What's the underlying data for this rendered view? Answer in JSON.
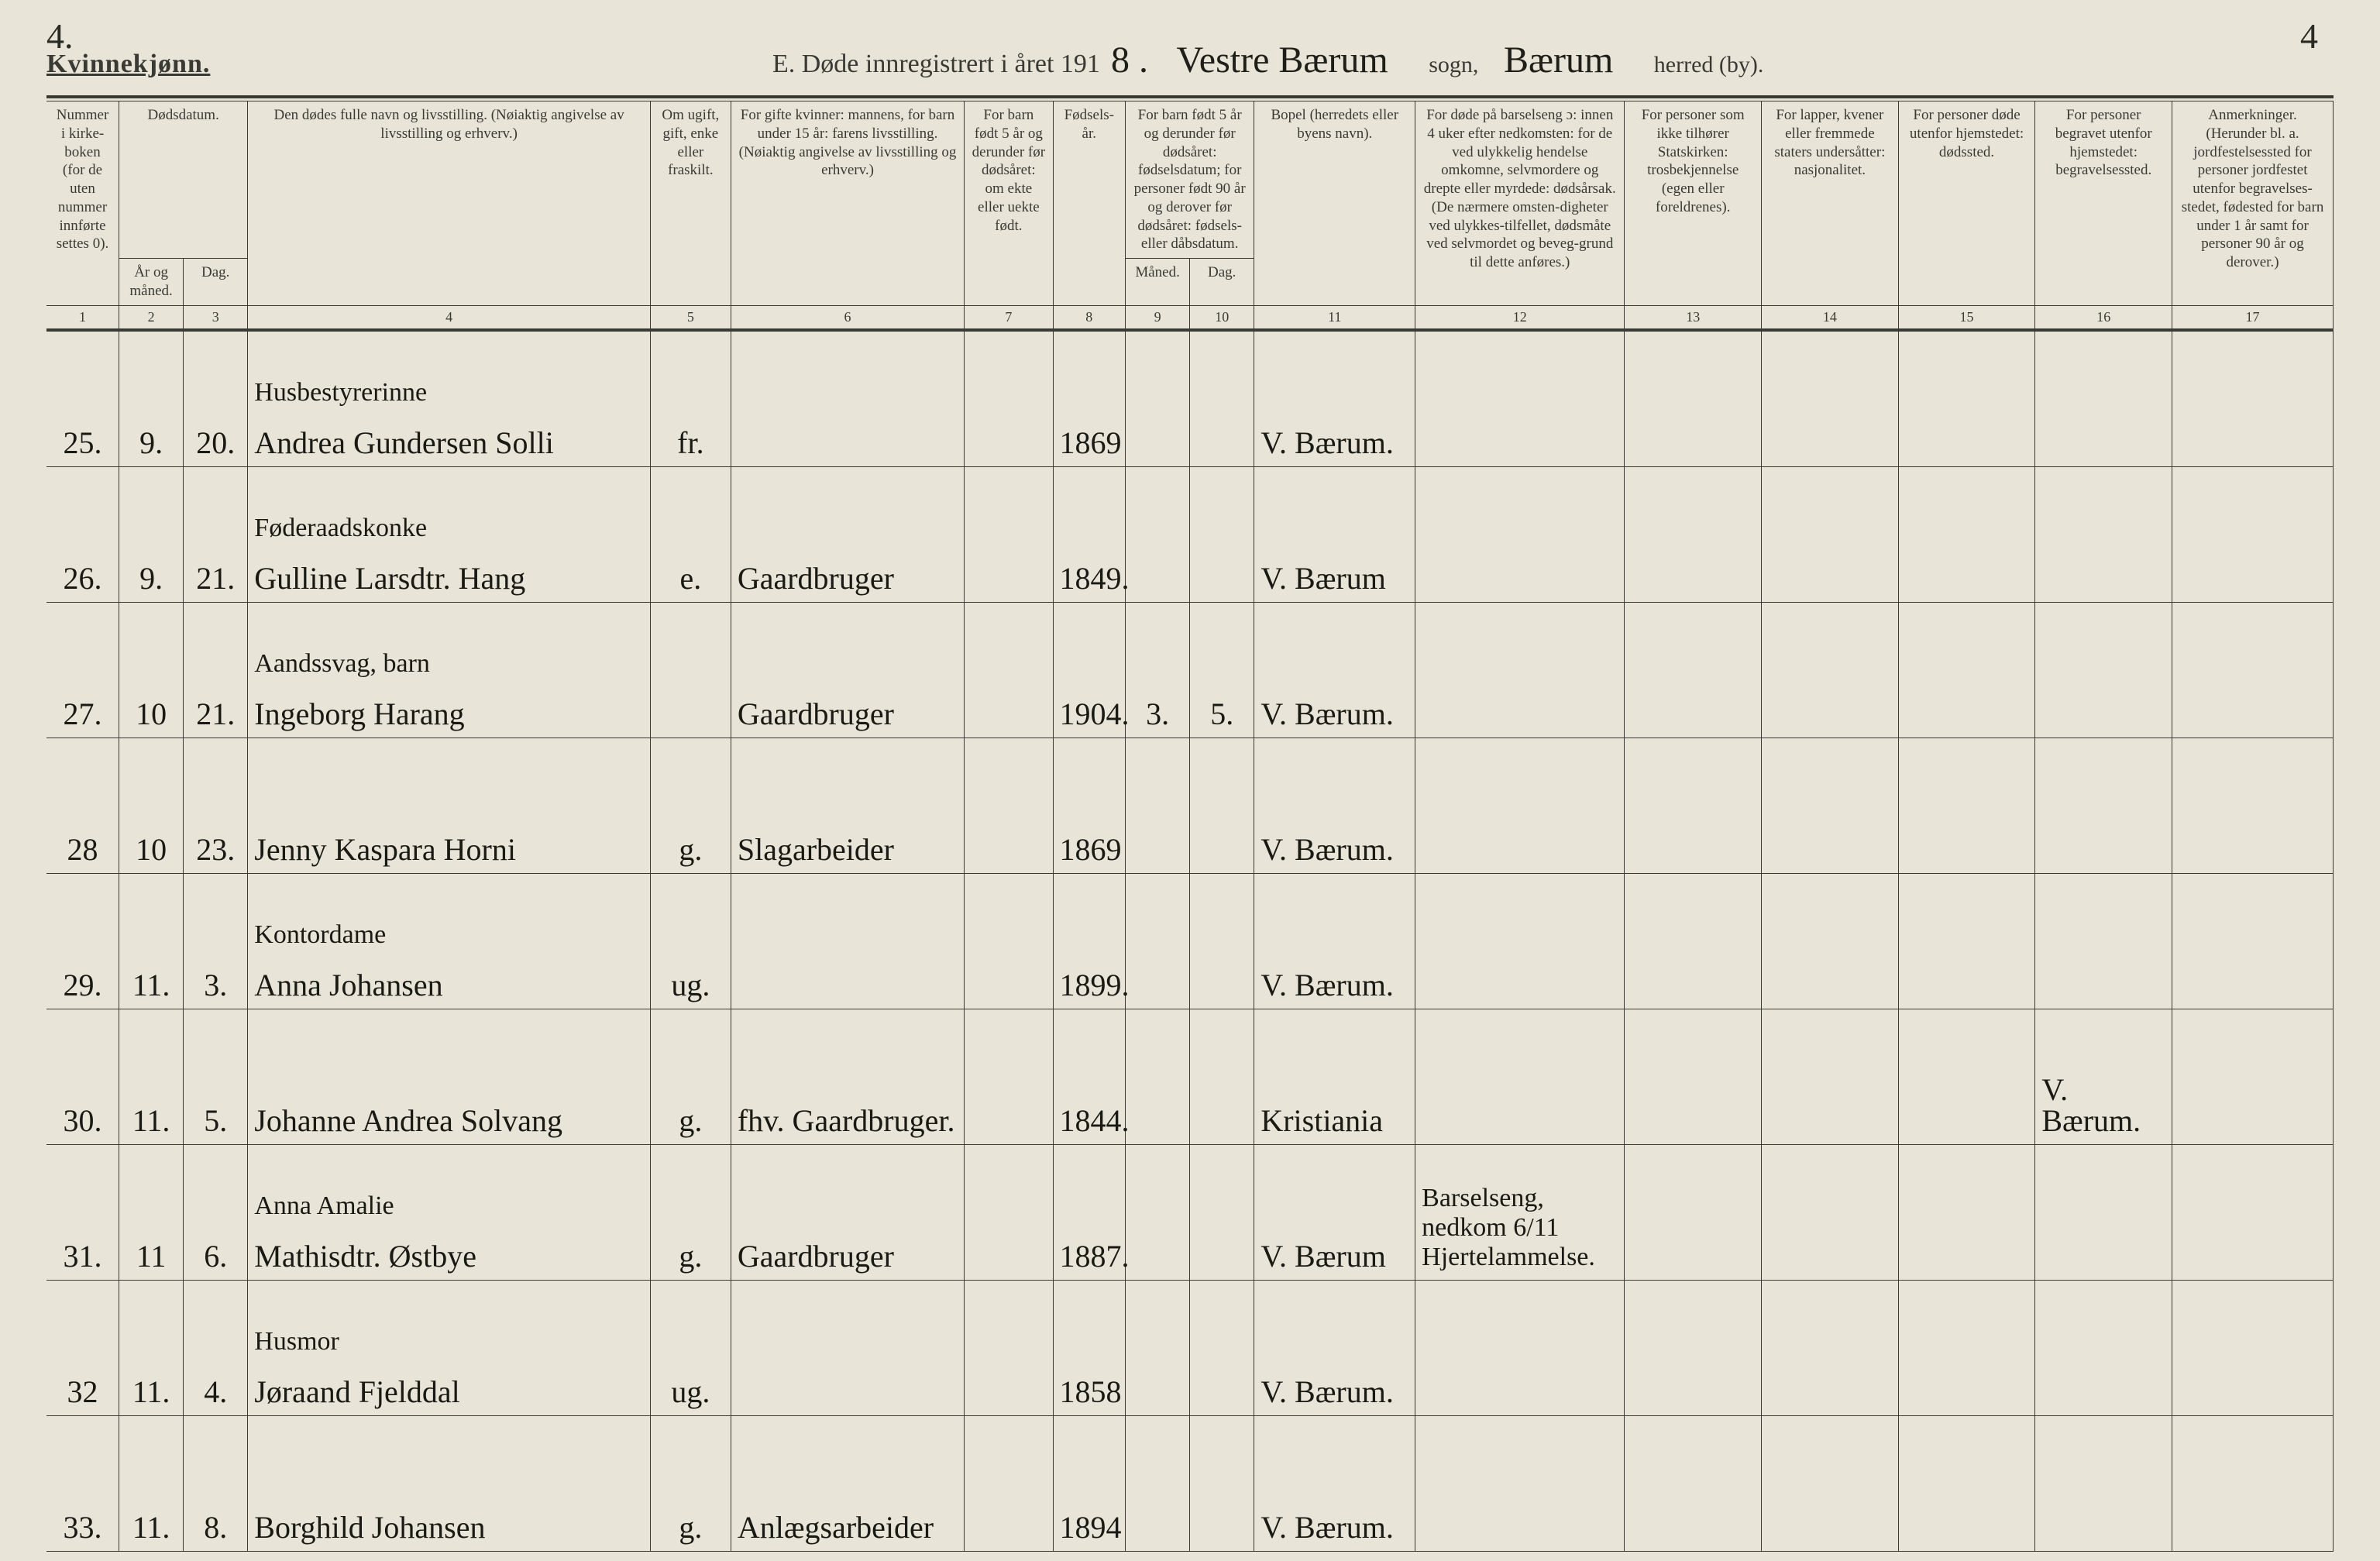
{
  "corners": {
    "topLeft": "4.",
    "topRight": "4"
  },
  "header": {
    "gender": "Kvinnekjønn.",
    "title_prefix": "E. Døde innregistrert i året 191",
    "year_suffix": "8 .",
    "sogn_written": "Vestre Bærum",
    "sogn_label": "sogn,",
    "herred_written": "Bærum",
    "herred_label": "herred (by)."
  },
  "columns": {
    "c1": "Nummer i kirke-boken (for de uten nummer innførte settes 0).",
    "c2_3_group": "Dødsdatum.",
    "c2": "År og måned.",
    "c3": "Dag.",
    "c4": "Den dødes fulle navn og livsstilling. (Nøiaktig angivelse av livsstilling og erhverv.)",
    "c5": "Om ugift, gift, enke eller fraskilt.",
    "c6": "For gifte kvinner: mannens, for barn under 15 år: farens livsstilling. (Nøiaktig angivelse av livsstilling og erhverv.)",
    "c7": "For barn født 5 år og derunder før dødsåret: om ekte eller uekte født.",
    "c8": "Fødsels-år.",
    "c9_10_top": "For barn født 5 år og derunder før dødsåret: fødselsdatum; for personer født 90 år og derover før dødsåret: fødsels- eller dåbsdatum.",
    "c9": "Måned.",
    "c10": "Dag.",
    "c11": "Bopel (herredets eller byens navn).",
    "c12": "For døde på barselseng ɔ: innen 4 uker efter nedkomsten: for de ved ulykkelig hendelse omkomne, selvmordere og drepte eller myrdede: dødsårsak. (De nærmere omsten-digheter ved ulykkes-tilfellet, dødsmåte ved selvmordet og beveg-grund til dette anføres.)",
    "c13": "For personer som ikke tilhører Statskirken: trosbekjennelse (egen eller foreldrenes).",
    "c14": "For lapper, kvener eller fremmede staters undersåtter: nasjonalitet.",
    "c15": "For personer døde utenfor hjemstedet: dødssted.",
    "c16": "For personer begravet utenfor hjemstedet: begravelsessted.",
    "c17": "Anmerkninger. (Herunder bl. a. jordfestelsessted for personer jordfestet utenfor begravelses-stedet, fødested for barn under 1 år samt for personer 90 år og derover.)"
  },
  "colnums": [
    "1",
    "2",
    "3",
    "4",
    "5",
    "6",
    "7",
    "8",
    "9",
    "10",
    "11",
    "12",
    "13",
    "14",
    "15",
    "16",
    "17"
  ],
  "rows": [
    {
      "num": "25.",
      "mon": "9.",
      "day": "20.",
      "occ": "Husbestyrerinne",
      "name": "Andrea Gundersen Solli",
      "status": "fr.",
      "rel": "",
      "c7": "",
      "year": "1869",
      "c9": "",
      "c10": "",
      "bopel": "V. Bærum.",
      "c12": "",
      "c13": "",
      "c14": "",
      "c15": "",
      "c16": "",
      "c17": ""
    },
    {
      "num": "26.",
      "mon": "9.",
      "day": "21.",
      "occ": "Føderaadskonke",
      "name": "Gulline Larsdtr. Hang",
      "status": "e.",
      "rel": "Gaardbruger",
      "c7": "",
      "year": "1849.",
      "c9": "",
      "c10": "",
      "bopel": "V. Bærum",
      "c12": "",
      "c13": "",
      "c14": "",
      "c15": "",
      "c16": "",
      "c17": ""
    },
    {
      "num": "27.",
      "mon": "10",
      "day": "21.",
      "occ": "Aandssvag, barn",
      "name": "Ingeborg Harang",
      "status": "",
      "rel": "Gaardbruger",
      "c7": "",
      "year": "1904.",
      "c9": "3.",
      "c10": "5.",
      "bopel": "V. Bærum.",
      "c12": "",
      "c13": "",
      "c14": "",
      "c15": "",
      "c16": "",
      "c17": ""
    },
    {
      "num": "28",
      "mon": "10",
      "day": "23.",
      "occ": "",
      "name": "Jenny Kaspara Horni",
      "status": "g.",
      "rel": "Slagarbeider",
      "c7": "",
      "year": "1869",
      "c9": "",
      "c10": "",
      "bopel": "V. Bærum.",
      "c12": "",
      "c13": "",
      "c14": "",
      "c15": "",
      "c16": "",
      "c17": ""
    },
    {
      "num": "29.",
      "mon": "11.",
      "day": "3.",
      "occ": "Kontordame",
      "name": "Anna Johansen",
      "status": "ug.",
      "rel": "",
      "c7": "",
      "year": "1899.",
      "c9": "",
      "c10": "",
      "bopel": "V. Bærum.",
      "c12": "",
      "c13": "",
      "c14": "",
      "c15": "",
      "c16": "",
      "c17": ""
    },
    {
      "num": "30.",
      "mon": "11.",
      "day": "5.",
      "occ": "",
      "name": "Johanne Andrea Solvang",
      "status": "g.",
      "rel": "fhv. Gaardbruger.",
      "c7": "",
      "year": "1844.",
      "c9": "",
      "c10": "",
      "bopel": "Kristiania",
      "c12": "",
      "c13": "",
      "c14": "",
      "c15": "",
      "c16": "V. Bærum.",
      "c17": ""
    },
    {
      "num": "31.",
      "mon": "11",
      "day": "6.",
      "occ": "Anna Amalie",
      "name": "Mathisdtr. Østbye",
      "status": "g.",
      "rel": "Gaardbruger",
      "c7": "",
      "year": "1887.",
      "c9": "",
      "c10": "",
      "bopel": "V. Bærum",
      "c12": "Barselseng, nedkom 6/11 Hjertelammelse.",
      "c13": "",
      "c14": "",
      "c15": "",
      "c16": "",
      "c17": ""
    },
    {
      "num": "32",
      "mon": "11.",
      "day": "4.",
      "occ": "Husmor",
      "name": "Jøraand Fjelddal",
      "status": "ug.",
      "rel": "",
      "c7": "",
      "year": "1858",
      "c9": "",
      "c10": "",
      "bopel": "V. Bærum.",
      "c12": "",
      "c13": "",
      "c14": "",
      "c15": "",
      "c16": "",
      "c17": ""
    },
    {
      "num": "33.",
      "mon": "11.",
      "day": "8.",
      "occ": "",
      "name": "Borghild Johansen",
      "status": "g.",
      "rel": "Anlægsarbeider",
      "c7": "",
      "year": "1894",
      "c9": "",
      "c10": "",
      "bopel": "V. Bærum.",
      "c12": "",
      "c13": "",
      "c14": "",
      "c15": "",
      "c16": "",
      "c17": ""
    }
  ]
}
